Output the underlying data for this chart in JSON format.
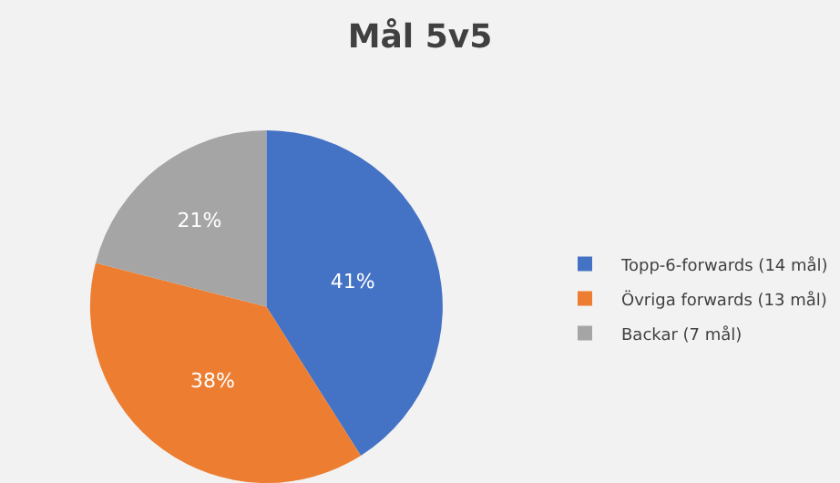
{
  "chart_data": {
    "type": "pie",
    "title": "Mål 5v5",
    "categories": [
      "Topp-6-forwards (14 mål)",
      "Övriga forwards (13 mål)",
      "Backar (7 mål)"
    ],
    "values": [
      41,
      38,
      21
    ],
    "value_labels": [
      "41%",
      "38%",
      "21%"
    ],
    "colors": [
      "#4472c4",
      "#ed7d31",
      "#a5a5a5"
    ],
    "legend": "right"
  }
}
